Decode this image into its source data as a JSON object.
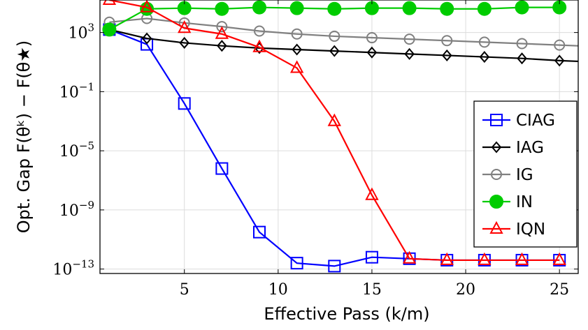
{
  "chart_data": {
    "type": "line",
    "xlabel": "Effective Pass (k/m)",
    "ylabel": "Opt. Gap F(θᵏ) − F(θ★)",
    "xlim": [
      0.5,
      26
    ],
    "ylim_log10": [
      -13.3,
      5.2
    ],
    "yscale": "log",
    "grid": true,
    "legend_position": "right",
    "x_ticks": [
      5,
      10,
      15,
      20,
      25
    ],
    "y_ticks": [
      {
        "exp": 3,
        "base": "10",
        "sup": "3"
      },
      {
        "exp": -1,
        "base": "10",
        "sup": "−1"
      },
      {
        "exp": -5,
        "base": "10",
        "sup": "−5"
      },
      {
        "exp": -9,
        "base": "10",
        "sup": "−9"
      },
      {
        "exp": -13,
        "base": "10",
        "sup": "−13"
      }
    ],
    "series": [
      {
        "name": "CIAG",
        "color": "#0000ff",
        "marker": "square",
        "x": [
          1,
          3,
          5,
          7,
          9,
          11,
          13,
          15,
          17,
          19,
          21,
          23,
          25
        ],
        "y_log10": [
          3.2,
          2.2,
          -1.8,
          -6.2,
          -10.5,
          -12.6,
          -12.8,
          -12.2,
          -12.3,
          -12.4,
          -12.4,
          -12.4,
          -12.4
        ]
      },
      {
        "name": "IAG",
        "color": "#000000",
        "marker": "diamond",
        "x": [
          1,
          3,
          5,
          7,
          9,
          11,
          13,
          15,
          17,
          19,
          21,
          23,
          25,
          26
        ],
        "y_log10": [
          3.2,
          2.6,
          2.3,
          2.1,
          1.95,
          1.85,
          1.75,
          1.65,
          1.55,
          1.45,
          1.35,
          1.25,
          1.1,
          1.05
        ]
      },
      {
        "name": "IG",
        "color": "#808080",
        "marker": "circle",
        "x": [
          1,
          3,
          5,
          7,
          9,
          11,
          13,
          15,
          17,
          19,
          21,
          23,
          25,
          26
        ],
        "y_log10": [
          3.7,
          3.95,
          3.65,
          3.4,
          3.1,
          2.9,
          2.75,
          2.65,
          2.55,
          2.45,
          2.35,
          2.25,
          2.15,
          2.1
        ]
      },
      {
        "name": "IN",
        "color": "#00cc00",
        "marker": "filled-circle",
        "x": [
          1,
          3,
          5,
          7,
          9,
          11,
          13,
          15,
          17,
          19,
          21,
          23,
          25
        ],
        "y_log10": [
          3.2,
          4.6,
          4.65,
          4.6,
          4.7,
          4.65,
          4.6,
          4.65,
          4.65,
          4.6,
          4.6,
          4.7,
          4.7
        ]
      },
      {
        "name": "IQN",
        "color": "#ff0000",
        "marker": "triangle",
        "x": [
          1,
          3,
          5,
          7,
          9,
          11,
          13,
          15,
          17,
          19,
          21,
          23,
          25
        ],
        "y_log10": [
          5.2,
          4.7,
          3.3,
          2.9,
          2.0,
          0.6,
          -3.0,
          -8.0,
          -12.3,
          -12.4,
          -12.4,
          -12.4,
          -12.4
        ]
      }
    ]
  }
}
